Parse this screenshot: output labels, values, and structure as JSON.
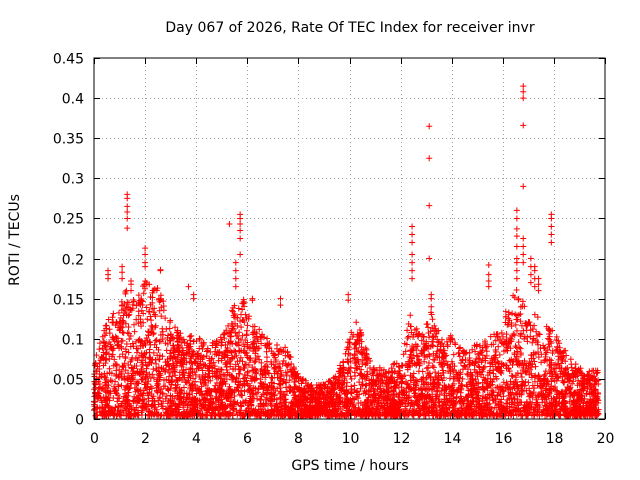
{
  "chart_data": {
    "type": "scatter",
    "title": "Day 067 of 2026, Rate Of TEC Index for receiver invr",
    "xlabel": "GPS time / hours",
    "ylabel": "ROTI / TECUs",
    "xlim": [
      0,
      20
    ],
    "ylim": [
      0,
      0.45
    ],
    "xticks": [
      0,
      2,
      4,
      6,
      8,
      10,
      12,
      14,
      16,
      18,
      20
    ],
    "yticks": [
      0,
      0.05,
      0.1,
      0.15,
      0.2,
      0.25,
      0.3,
      0.35,
      0.4,
      0.45
    ],
    "xtick_labels": [
      "0",
      "2",
      "4",
      "6",
      "8",
      "10",
      "12",
      "14",
      "16",
      "18",
      "20"
    ],
    "ytick_labels": [
      "0",
      "0.05",
      "0.1",
      "0.15",
      "0.2",
      "0.25",
      "0.3",
      "0.35",
      "0.4",
      "0.45"
    ],
    "grid": true,
    "marker": "+",
    "color": "#ff0000",
    "data_extent_hours": [
      0,
      19.75
    ],
    "envelope": {
      "hours": [
        0,
        0.5,
        1,
        1.3,
        1.7,
        2,
        2.5,
        3,
        3.5,
        4,
        4.5,
        5,
        5.5,
        5.8,
        6.2,
        7,
        7.5,
        8,
        8.5,
        9,
        9.5,
        10,
        10.3,
        10.7,
        11,
        11.5,
        12,
        12.4,
        12.8,
        13.2,
        13.6,
        14,
        14.5,
        15,
        15.5,
        16,
        16.3,
        16.6,
        16.9,
        17.2,
        17.5,
        17.9,
        18.3,
        18.7,
        19,
        19.4,
        19.75
      ],
      "typical_max_roti": [
        0.07,
        0.12,
        0.14,
        0.16,
        0.15,
        0.17,
        0.16,
        0.12,
        0.1,
        0.1,
        0.09,
        0.1,
        0.14,
        0.16,
        0.12,
        0.09,
        0.09,
        0.05,
        0.04,
        0.04,
        0.05,
        0.1,
        0.12,
        0.08,
        0.06,
        0.06,
        0.07,
        0.13,
        0.1,
        0.13,
        0.1,
        0.1,
        0.08,
        0.09,
        0.1,
        0.12,
        0.15,
        0.16,
        0.14,
        0.13,
        0.12,
        0.11,
        0.09,
        0.07,
        0.06,
        0.06,
        0.06
      ]
    },
    "spikes": [
      {
        "hours": 1.3,
        "roti": [
          0.28,
          0.275,
          0.265,
          0.258,
          0.25,
          0.238
        ]
      },
      {
        "hours": 2.0,
        "roti": [
          0.213,
          0.205,
          0.195,
          0.19
        ]
      },
      {
        "hours": 0.55,
        "roti": [
          0.185,
          0.18,
          0.175
        ]
      },
      {
        "hours": 1.1,
        "roti": [
          0.19,
          0.183,
          0.175
        ]
      },
      {
        "hours": 1.45,
        "roti": [
          0.172,
          0.168,
          0.16
        ]
      },
      {
        "hours": 2.6,
        "roti": [
          0.186,
          0.185
        ]
      },
      {
        "hours": 3.7,
        "roti": [
          0.165
        ]
      },
      {
        "hours": 3.9,
        "roti": [
          0.155,
          0.15
        ]
      },
      {
        "hours": 5.3,
        "roti": [
          0.243
        ]
      },
      {
        "hours": 5.72,
        "roti": [
          0.255,
          0.25,
          0.243,
          0.235,
          0.225,
          0.205
        ]
      },
      {
        "hours": 5.55,
        "roti": [
          0.195,
          0.185,
          0.175,
          0.165
        ]
      },
      {
        "hours": 6.2,
        "roti": [
          0.15,
          0.148
        ]
      },
      {
        "hours": 7.3,
        "roti": [
          0.15,
          0.142
        ]
      },
      {
        "hours": 9.95,
        "roti": [
          0.155,
          0.148
        ]
      },
      {
        "hours": 12.45,
        "roti": [
          0.24,
          0.23,
          0.22,
          0.205,
          0.195,
          0.185,
          0.175
        ]
      },
      {
        "hours": 13.12,
        "roti": [
          0.365,
          0.325,
          0.266,
          0.2
        ]
      },
      {
        "hours": 13.2,
        "roti": [
          0.155,
          0.15,
          0.14
        ]
      },
      {
        "hours": 15.45,
        "roti": [
          0.192,
          0.18,
          0.172,
          0.165
        ]
      },
      {
        "hours": 16.55,
        "roti": [
          0.26,
          0.25,
          0.237,
          0.228,
          0.215,
          0.2,
          0.195,
          0.185,
          0.175
        ]
      },
      {
        "hours": 16.8,
        "roti": [
          0.415,
          0.408,
          0.4,
          0.366,
          0.29,
          0.225,
          0.215,
          0.205,
          0.195
        ]
      },
      {
        "hours": 17.1,
        "roti": [
          0.2,
          0.19,
          0.18,
          0.17
        ]
      },
      {
        "hours": 17.25,
        "roti": [
          0.19,
          0.185,
          0.175,
          0.165
        ]
      },
      {
        "hours": 17.4,
        "roti": [
          0.175,
          0.168,
          0.16
        ]
      },
      {
        "hours": 17.9,
        "roti": [
          0.255,
          0.25,
          0.24,
          0.23,
          0.22
        ]
      }
    ]
  }
}
